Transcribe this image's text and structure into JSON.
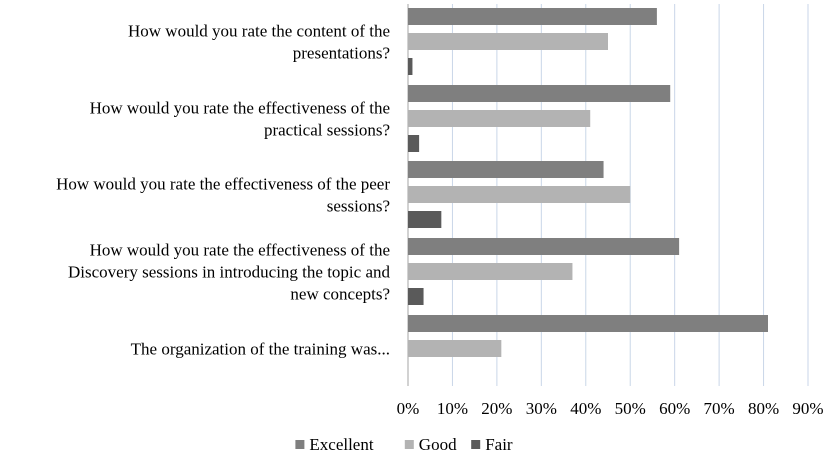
{
  "chart_data": {
    "type": "bar",
    "orientation": "horizontal",
    "categories": [
      [
        "How would you rate the content of the",
        "presentations?"
      ],
      [
        "How would you rate the effectiveness of the",
        "practical sessions?"
      ],
      [
        "How would you rate the effectiveness of the peer",
        "sessions?"
      ],
      [
        "How would you rate the effectiveness of the",
        "Discovery sessions in introducing the topic and",
        "new concepts?"
      ],
      [
        "The organization of the training was..."
      ]
    ],
    "series": [
      {
        "name": "Excellent",
        "color": "#7f7f7f",
        "values": [
          56,
          59,
          44,
          61,
          81
        ]
      },
      {
        "name": "Good",
        "color": "#b3b3b3",
        "values": [
          45,
          41,
          50,
          37,
          21
        ]
      },
      {
        "name": "Fair",
        "color": "#5a5a5a",
        "values": [
          1,
          2.5,
          7.5,
          3.5,
          0
        ]
      }
    ],
    "x_ticks": [
      "0%",
      "10%",
      "20%",
      "30%",
      "40%",
      "50%",
      "60%",
      "70%",
      "80%",
      "90%"
    ],
    "xlim": [
      0,
      90
    ],
    "grid": true,
    "grid_color": "#c9d6e8",
    "legend_position": "bottom",
    "title": "",
    "xlabel": "",
    "ylabel": ""
  }
}
